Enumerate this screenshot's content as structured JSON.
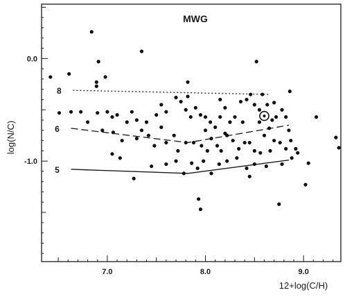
{
  "chart_data": {
    "type": "scatter",
    "title": "MWG",
    "xlabel": "12+log(C/H)",
    "ylabel": "log(N/C)",
    "xlim": [
      6.33,
      9.38
    ],
    "ylim": [
      -1.98,
      0.53
    ],
    "x_ticks": [
      7.0,
      8.0,
      9.0
    ],
    "x_tick_labels": [
      "7.0",
      "8.0",
      "9.0"
    ],
    "y_ticks": [
      0.0,
      -1.0
    ],
    "y_tick_labels": [
      "0.0",
      "-1.0"
    ],
    "grid": false,
    "points": [
      [
        6.42,
        -0.18
      ],
      [
        6.84,
        0.26
      ],
      [
        6.91,
        -0.03
      ],
      [
        6.61,
        -0.15
      ],
      [
        6.98,
        -0.18
      ],
      [
        6.89,
        -0.23
      ],
      [
        6.89,
        -0.27
      ],
      [
        7.35,
        0.07
      ],
      [
        7.82,
        -0.23
      ],
      [
        8.52,
        -0.03
      ],
      [
        6.51,
        -0.53
      ],
      [
        6.63,
        -0.52
      ],
      [
        6.73,
        -0.52
      ],
      [
        6.8,
        -0.62
      ],
      [
        6.9,
        -0.53
      ],
      [
        7.0,
        -0.52
      ],
      [
        7.05,
        -0.57
      ],
      [
        7.1,
        -0.55
      ],
      [
        7.2,
        -0.62
      ],
      [
        7.25,
        -0.52
      ],
      [
        7.3,
        -0.6
      ],
      [
        7.4,
        -0.62
      ],
      [
        7.5,
        -0.55
      ],
      [
        7.55,
        -0.45
      ],
      [
        7.6,
        -0.52
      ],
      [
        7.7,
        -0.38
      ],
      [
        7.75,
        -0.42
      ],
      [
        7.8,
        -0.5
      ],
      [
        7.85,
        -0.57
      ],
      [
        7.9,
        -0.48
      ],
      [
        7.95,
        -0.55
      ],
      [
        8.0,
        -0.57
      ],
      [
        8.05,
        -0.62
      ],
      [
        8.1,
        -0.67
      ],
      [
        8.15,
        -0.57
      ],
      [
        8.2,
        -0.48
      ],
      [
        8.25,
        -0.62
      ],
      [
        8.3,
        -0.57
      ],
      [
        8.38,
        -0.62
      ],
      [
        8.42,
        -0.4
      ],
      [
        8.46,
        -0.35
      ],
      [
        8.5,
        -0.45
      ],
      [
        8.55,
        -0.5
      ],
      [
        8.58,
        -0.35
      ],
      [
        8.63,
        -0.45
      ],
      [
        8.68,
        -0.6
      ],
      [
        8.72,
        -0.57
      ],
      [
        8.78,
        -0.5
      ],
      [
        8.82,
        -0.57
      ],
      [
        8.86,
        -0.32
      ],
      [
        9.13,
        -0.57
      ],
      [
        7.06,
        -0.72
      ],
      [
        7.15,
        -0.8
      ],
      [
        7.3,
        -0.78
      ],
      [
        7.42,
        -0.75
      ],
      [
        7.48,
        -0.85
      ],
      [
        7.6,
        -0.82
      ],
      [
        7.68,
        -0.75
      ],
      [
        7.72,
        -0.9
      ],
      [
        7.8,
        -0.82
      ],
      [
        7.88,
        -0.82
      ],
      [
        7.96,
        -0.85
      ],
      [
        8.02,
        -0.9
      ],
      [
        8.06,
        -0.78
      ],
      [
        8.12,
        -0.85
      ],
      [
        8.16,
        -0.9
      ],
      [
        8.22,
        -0.75
      ],
      [
        8.28,
        -0.8
      ],
      [
        8.34,
        -0.88
      ],
      [
        8.4,
        -0.82
      ],
      [
        8.45,
        -0.82
      ],
      [
        8.5,
        -0.9
      ],
      [
        8.56,
        -0.92
      ],
      [
        8.6,
        -0.75
      ],
      [
        8.66,
        -0.9
      ],
      [
        8.7,
        -0.8
      ],
      [
        8.76,
        -0.82
      ],
      [
        8.82,
        -0.88
      ],
      [
        8.87,
        -0.8
      ],
      [
        8.92,
        -0.88
      ],
      [
        7.05,
        -0.93
      ],
      [
        7.13,
        -0.97
      ],
      [
        7.27,
        -1.17
      ],
      [
        7.45,
        -1.05
      ],
      [
        7.6,
        -1.03
      ],
      [
        7.7,
        -1.0
      ],
      [
        7.78,
        -1.12
      ],
      [
        7.86,
        -1.02
      ],
      [
        7.92,
        -1.07
      ],
      [
        7.98,
        -1.0
      ],
      [
        8.06,
        -1.12
      ],
      [
        8.14,
        -1.03
      ],
      [
        8.22,
        -1.0
      ],
      [
        8.32,
        -0.97
      ],
      [
        8.42,
        -1.07
      ],
      [
        8.5,
        -1.03
      ],
      [
        8.62,
        -1.05
      ],
      [
        8.78,
        -1.03
      ],
      [
        8.88,
        -0.97
      ],
      [
        8.94,
        -0.92
      ],
      [
        9.02,
        -1.23
      ],
      [
        9.05,
        -1.02
      ],
      [
        7.93,
        -1.37
      ],
      [
        7.95,
        -1.47
      ],
      [
        8.75,
        -1.42
      ],
      [
        9.33,
        -0.77
      ],
      [
        9.36,
        -0.87
      ],
      [
        8.45,
        -1.15
      ],
      [
        7.35,
        -0.7
      ],
      [
        7.55,
        -0.67
      ],
      [
        8.0,
        -0.7
      ],
      [
        8.2,
        -0.73
      ],
      [
        8.65,
        -0.68
      ],
      [
        8.85,
        -0.7
      ],
      [
        6.95,
        -0.7
      ],
      [
        7.82,
        -0.37
      ],
      [
        8.15,
        -0.4
      ],
      [
        8.36,
        -0.42
      ],
      [
        8.55,
        -0.62
      ],
      [
        8.7,
        -0.43
      ]
    ],
    "highlight_point": [
      8.6,
      -0.56
    ],
    "curves": [
      {
        "label": "8",
        "style": "dotted",
        "points": [
          [
            6.65,
            -0.31
          ],
          [
            8.65,
            -0.35
          ]
        ]
      },
      {
        "label": "6",
        "style": "dashed",
        "points": [
          [
            6.63,
            -0.68
          ],
          [
            7.82,
            -0.82
          ],
          [
            8.85,
            -0.65
          ]
        ]
      },
      {
        "label": "5",
        "style": "solid",
        "points": [
          [
            6.63,
            -1.08
          ],
          [
            7.82,
            -1.12
          ],
          [
            8.85,
            -0.99
          ]
        ]
      }
    ]
  }
}
